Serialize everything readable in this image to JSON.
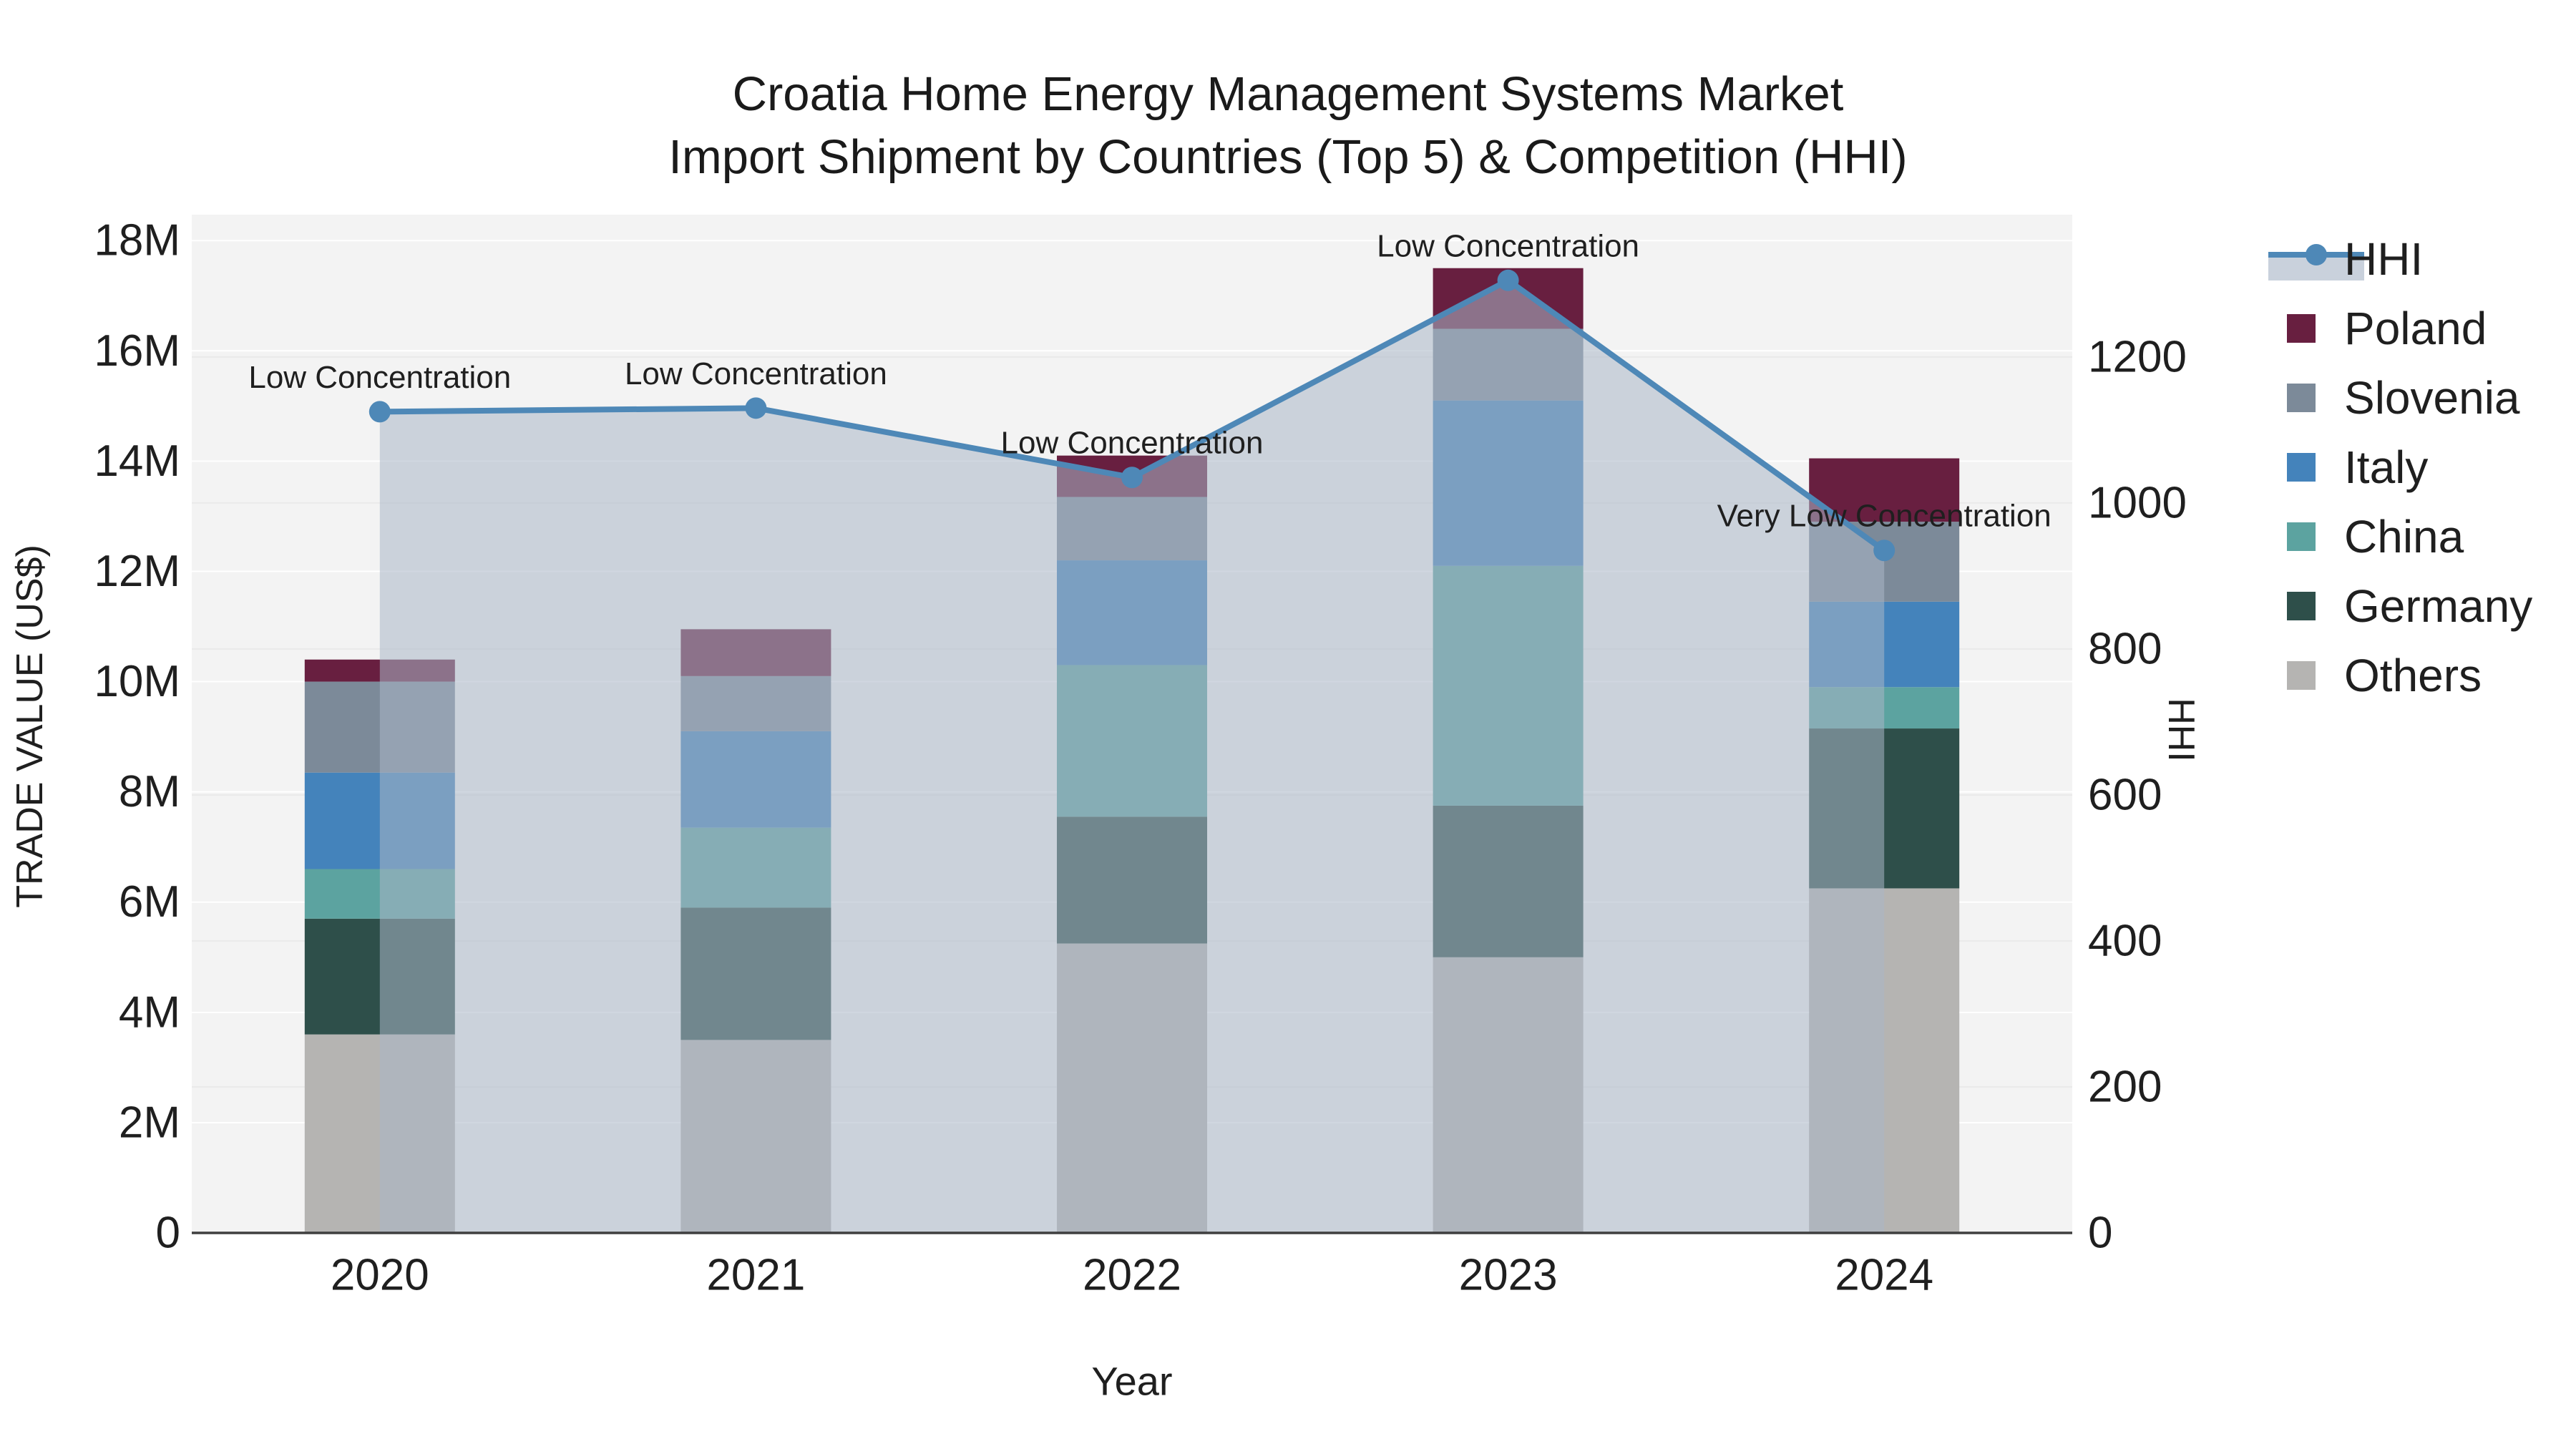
{
  "title": {
    "line1": "Croatia Home Energy Management Systems Market",
    "line2": "Import Shipment by Countries (Top 5) & Competition (HHI)"
  },
  "chart_data": {
    "type": "bar",
    "subtype": "stacked-bar-with-line-overlay",
    "x": {
      "label": "Year",
      "categories": [
        "2020",
        "2021",
        "2022",
        "2023",
        "2024"
      ]
    },
    "y_left": {
      "label": "TRADE VALUE (US$)",
      "ticks": [
        "0",
        "2M",
        "4M",
        "6M",
        "8M",
        "10M",
        "12M",
        "14M",
        "16M",
        "18M"
      ],
      "tick_values_m": [
        0,
        2,
        4,
        6,
        8,
        10,
        12,
        14,
        16,
        18
      ],
      "axis_max_m": 18.47
    },
    "y_right": {
      "label": "HHI",
      "ticks": [
        "0",
        "200",
        "400",
        "600",
        "800",
        "1000",
        "1200"
      ],
      "tick_values": [
        0,
        200,
        400,
        600,
        800,
        1000,
        1200
      ],
      "axis_max": 1395
    },
    "stack_order_bottom_to_top": [
      "Others",
      "Germany",
      "China",
      "Italy",
      "Slovenia",
      "Poland"
    ],
    "series": [
      {
        "name": "Others",
        "color": "#b5b4b2",
        "values_musd": [
          3.6,
          3.5,
          5.25,
          5.0,
          6.25
        ]
      },
      {
        "name": "Germany",
        "color": "#2e4f4a",
        "values_musd": [
          2.1,
          2.4,
          2.3,
          2.75,
          2.9
        ]
      },
      {
        "name": "China",
        "color": "#5ca3a0",
        "values_musd": [
          0.9,
          1.45,
          2.75,
          4.35,
          0.75
        ]
      },
      {
        "name": "Italy",
        "color": "#4483bb",
        "values_musd": [
          1.75,
          1.75,
          1.9,
          3.0,
          1.55
        ]
      },
      {
        "name": "Slovenia",
        "color": "#7c8a99",
        "values_musd": [
          1.65,
          1.0,
          1.15,
          1.3,
          1.45
        ]
      },
      {
        "name": "Poland",
        "color": "#681f40",
        "values_musd": [
          0.4,
          0.85,
          0.75,
          1.1,
          1.15
        ]
      }
    ],
    "bar_totals_musd": [
      10.4,
      10.95,
      14.1,
      17.5,
      14.05
    ],
    "line_series": {
      "name": "HHI",
      "color": "#4e88b7",
      "fill_color": "rgba(170,182,199,0.55)",
      "values": [
        1125,
        1130,
        1035,
        1305,
        935
      ]
    },
    "annotations": [
      {
        "x": "2020",
        "text": "Low Concentration"
      },
      {
        "x": "2021",
        "text": "Low Concentration"
      },
      {
        "x": "2022",
        "text": "Low Concentration"
      },
      {
        "x": "2023",
        "text": "Low Concentration"
      },
      {
        "x": "2024",
        "text": "Very Low Concentration"
      }
    ],
    "legend": {
      "position": "right",
      "items": [
        {
          "label": "HHI",
          "type": "line",
          "color": "#4e88b7",
          "fill": "#c9d1dc"
        },
        {
          "label": "Poland",
          "type": "swatch",
          "color": "#681f40"
        },
        {
          "label": "Slovenia",
          "type": "swatch",
          "color": "#7c8a99"
        },
        {
          "label": "Italy",
          "type": "swatch",
          "color": "#4483bb"
        },
        {
          "label": "China",
          "type": "swatch",
          "color": "#5ca3a0"
        },
        {
          "label": "Germany",
          "type": "swatch",
          "color": "#2e4f4a"
        },
        {
          "label": "Others",
          "type": "swatch",
          "color": "#b5b4b2"
        }
      ]
    },
    "style": {
      "plot_bg": "#f3f3f3",
      "grid_left_color": "#ffffff",
      "grid_right_color": "#eaeaea",
      "axis_line_color": "#3f3f3f",
      "text_color": "#1f1f1f"
    },
    "layout_hints": {
      "grid": true,
      "legend_position": "right-outside"
    }
  }
}
